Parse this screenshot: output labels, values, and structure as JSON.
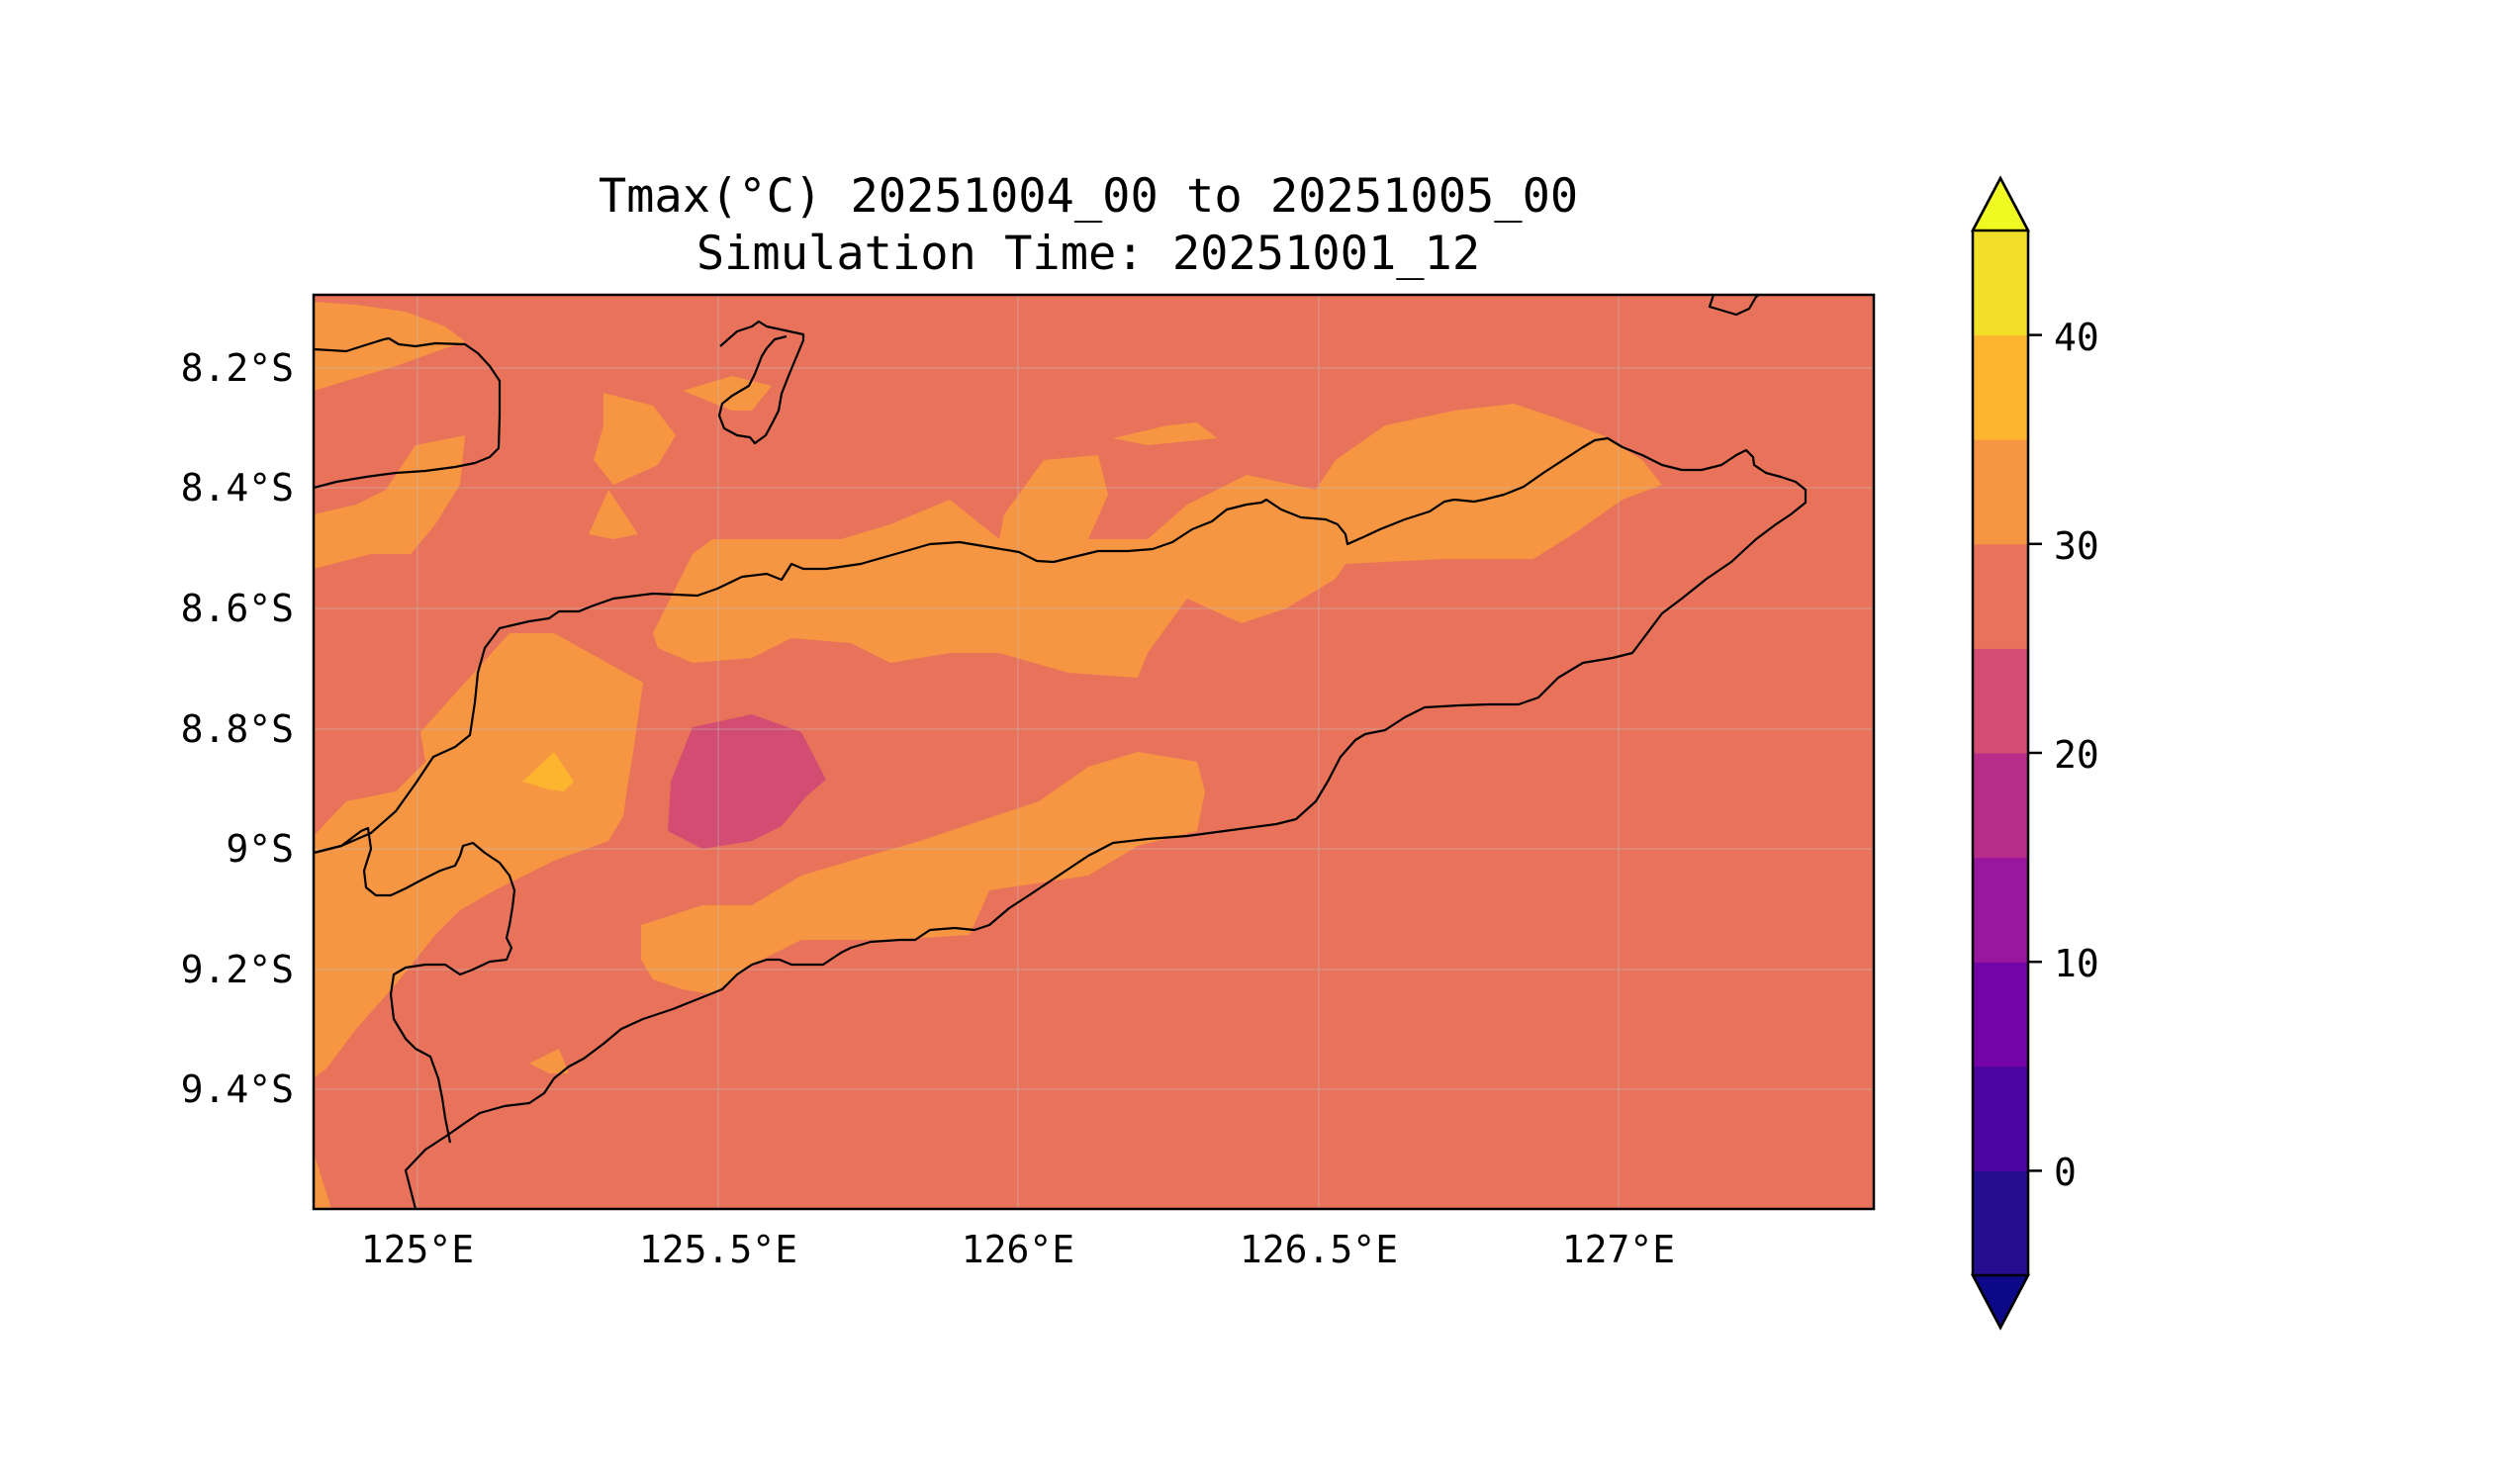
{
  "figure": {
    "title_line1": "Tmax(°C) 20251004_00 to 20251005_00",
    "title_line2": "Simulation Time: 20251001_12"
  },
  "map": {
    "x_tick_labels": [
      "125°E",
      "125.5°E",
      "126°E",
      "126.5°E",
      "127°E"
    ],
    "y_tick_labels": [
      "8.2°S",
      "8.4°S",
      "8.6°S",
      "8.8°S",
      "9°S",
      "9.2°S",
      "9.4°S"
    ],
    "lon_range": [
      124.82,
      127.42
    ],
    "lat_range": [
      -9.6,
      -8.08
    ],
    "x_ticks": [
      125,
      125.5,
      126,
      126.5,
      127
    ],
    "y_ticks": [
      -8.2,
      -8.4,
      -8.6,
      -8.8,
      -9.0,
      -9.2,
      -9.4
    ],
    "background_color": "#e8735a",
    "coastline_color": "#000000"
  },
  "colorbar": {
    "tick_labels": [
      "0",
      "10",
      "20",
      "30",
      "40"
    ],
    "ticks": [
      0,
      10,
      20,
      30,
      40
    ],
    "levels": [
      -5,
      0,
      5,
      10,
      15,
      20,
      25,
      30,
      35,
      40,
      45
    ],
    "colors": [
      "#240e8f",
      "#4c04a1",
      "#7304a8",
      "#99179c",
      "#b92d8a",
      "#d34d72",
      "#e8735a",
      "#f69542",
      "#fdb42f",
      "#f2e028"
    ],
    "under_color": "#0d0887",
    "over_color": "#f0f921",
    "extend": "both"
  }
}
